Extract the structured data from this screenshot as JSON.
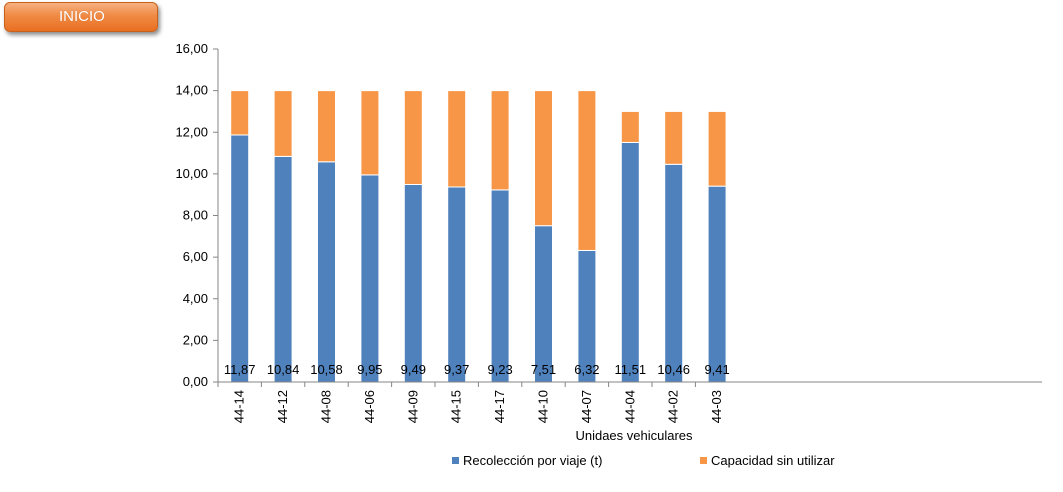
{
  "button": {
    "label": "INICIO"
  },
  "colors": {
    "recoleccion": "#4f81bd",
    "capacidad": "#f79646",
    "button": "#ee7b31"
  },
  "chart_data": {
    "type": "bar",
    "stacked": true,
    "xlabel": "Unidaes vehiculares",
    "ylabel": "",
    "ylim": [
      0,
      16
    ],
    "yticks": [
      "0,00",
      "2,00",
      "4,00",
      "6,00",
      "8,00",
      "10,00",
      "12,00",
      "14,00",
      "16,00"
    ],
    "categories": [
      "44-14",
      "44-12",
      "44-08",
      "44-06",
      "44-09",
      "44-15",
      "44-17",
      "44-10",
      "44-07",
      "44-04",
      "44-02",
      "44-03"
    ],
    "series": [
      {
        "name": "Recolección por viaje (t)",
        "values": [
          11.87,
          10.84,
          10.58,
          9.95,
          9.49,
          9.37,
          9.23,
          7.51,
          6.32,
          11.51,
          10.46,
          9.41
        ],
        "labels": [
          "11,87",
          "10,84",
          "10,58",
          "9,95",
          "9,49",
          "9,37",
          "9,23",
          "7,51",
          "6,32",
          "11,51",
          "10,46",
          "9,41"
        ]
      },
      {
        "name": "Capacidad sin utilizar",
        "values": [
          2.13,
          3.16,
          3.42,
          4.05,
          4.51,
          4.63,
          4.77,
          6.49,
          7.68,
          1.49,
          2.54,
          3.59
        ]
      }
    ],
    "legend": "bottom",
    "grid": false
  }
}
